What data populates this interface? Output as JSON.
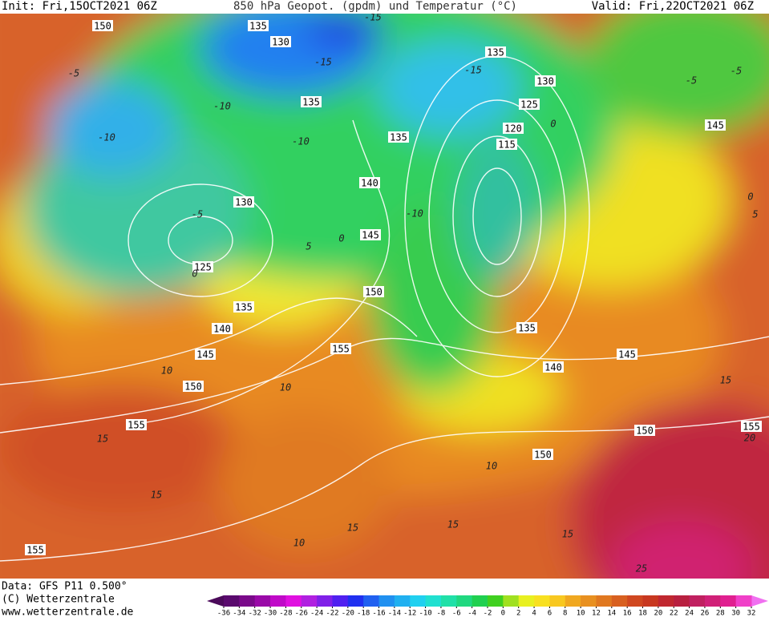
{
  "header": {
    "init": "Init: Fri,15OCT2021 06Z",
    "title": "850 hPa Geopot. (gpdm) und Temperatur (°C)",
    "valid": "Valid: Fri,22OCT2021 06Z"
  },
  "footer": {
    "data": "Data: GFS P11 0.500°",
    "copyright": "(C) Wetterzentrale",
    "url": "www.wetterzentrale.de"
  },
  "map": {
    "geopotential_labels": [
      "150",
      "135",
      "130",
      "135",
      "130",
      "135",
      "125",
      "120",
      "135",
      "115",
      "140",
      "130",
      "145",
      "125",
      "150",
      "135",
      "140",
      "135",
      "155",
      "145",
      "145",
      "140",
      "150",
      "155",
      "150",
      "155",
      "150",
      "155",
      "145"
    ],
    "temperature_labels": [
      "-15",
      "-15",
      "-5",
      "-10",
      "-15",
      "-10",
      "-10",
      "-10",
      "-5",
      "0",
      "0",
      "5",
      "0",
      "-5",
      "-5",
      "5",
      "0",
      "10",
      "10",
      "15",
      "15",
      "15",
      "15",
      "10",
      "15",
      "10",
      "25",
      "15",
      "20"
    ]
  },
  "colorbar": {
    "ticks": [
      -36,
      -34,
      -32,
      -30,
      -28,
      -26,
      -24,
      -22,
      -20,
      -18,
      -16,
      -14,
      -12,
      -10,
      -8,
      -6,
      -4,
      -2,
      0,
      2,
      4,
      6,
      8,
      10,
      12,
      14,
      16,
      18,
      20,
      22,
      24,
      26,
      28,
      30,
      32
    ],
    "colors": [
      "#4b0a5a",
      "#5a0a6e",
      "#7a0a8a",
      "#9a0aa8",
      "#c00ac8",
      "#e010e0",
      "#b020e0",
      "#8020e8",
      "#5020f0",
      "#2030f0",
      "#2060f0",
      "#2090f0",
      "#20b0f0",
      "#20d0f0",
      "#20e0d0",
      "#20e0a8",
      "#20d880",
      "#20d050",
      "#40d020",
      "#a0e020",
      "#e8f020",
      "#f8e020",
      "#f8c820",
      "#f0a820",
      "#e89020",
      "#e07820",
      "#d86020",
      "#d04820",
      "#c83820",
      "#c02830",
      "#b82040",
      "#c02060",
      "#d02078",
      "#e02090",
      "#f040c8",
      "#f070f0"
    ]
  }
}
